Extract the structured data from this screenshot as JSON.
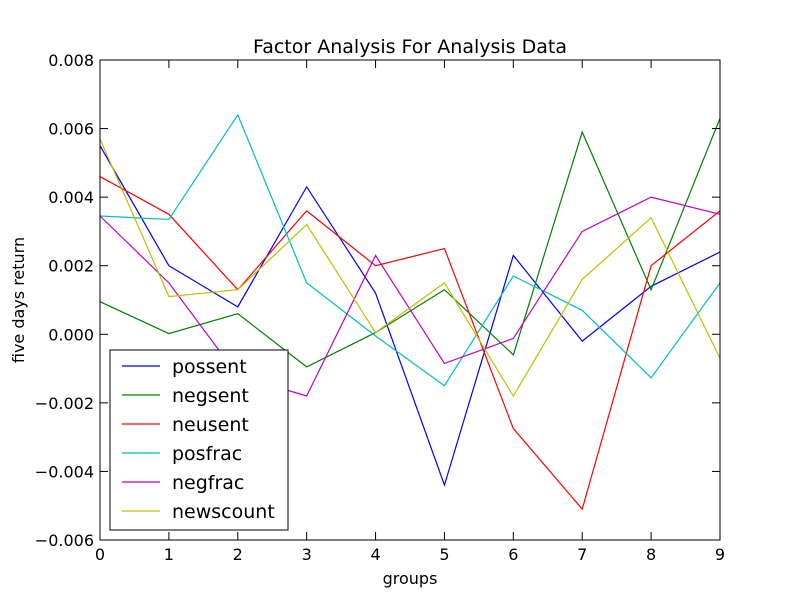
{
  "chart_data": {
    "type": "line",
    "title": "Factor Analysis For Analysis Data",
    "xlabel": "groups",
    "ylabel": "five days return",
    "xlim": [
      0,
      9
    ],
    "ylim": [
      -0.006,
      0.008
    ],
    "x": [
      0,
      1,
      2,
      3,
      4,
      5,
      6,
      7,
      8,
      9
    ],
    "x_tick_labels": [
      "0",
      "1",
      "2",
      "3",
      "4",
      "5",
      "6",
      "7",
      "8",
      "9"
    ],
    "y_ticks": [
      -0.006,
      -0.004,
      -0.002,
      0.0,
      0.002,
      0.004,
      0.006,
      0.008
    ],
    "y_tick_labels": [
      "−0.006",
      "−0.004",
      "−0.002",
      "0.000",
      "0.002",
      "0.004",
      "0.006",
      "0.008"
    ],
    "grid": false,
    "legend_position": "lower-left",
    "series": [
      {
        "name": "possent",
        "color": "#0000ff",
        "values": [
          0.0055,
          0.002,
          0.0008,
          0.0043,
          0.0012,
          -0.0044,
          0.0023,
          -0.0002,
          0.0014,
          0.0024
        ]
      },
      {
        "name": "negsent",
        "color": "#008000",
        "values": [
          0.00095,
          2e-05,
          0.0006,
          -0.00095,
          5e-05,
          0.0013,
          -0.0006,
          0.0059,
          0.0013,
          0.0063
        ]
      },
      {
        "name": "neusent",
        "color": "#ff0000",
        "values": [
          0.0046,
          0.0035,
          0.0013,
          0.0036,
          0.002,
          0.0025,
          -0.00275,
          -0.0051,
          0.002,
          0.0036
        ]
      },
      {
        "name": "posfrac",
        "color": "#00bfbf",
        "values": [
          0.00345,
          0.00335,
          0.0064,
          0.0015,
          -5e-05,
          -0.0015,
          0.0017,
          0.0007,
          -0.00127,
          0.0015
        ]
      },
      {
        "name": "negfrac",
        "color": "#bf00bf",
        "values": [
          0.00345,
          0.0015,
          -0.0012,
          -0.0018,
          0.0023,
          -0.00085,
          -0.00012,
          0.003,
          0.004,
          0.0035
        ]
      },
      {
        "name": "newscount",
        "color": "#bfbf00",
        "values": [
          0.0057,
          0.0011,
          0.0013,
          0.0032,
          5e-05,
          0.0015,
          -0.0018,
          0.0016,
          0.0034,
          -0.0007
        ]
      }
    ]
  }
}
